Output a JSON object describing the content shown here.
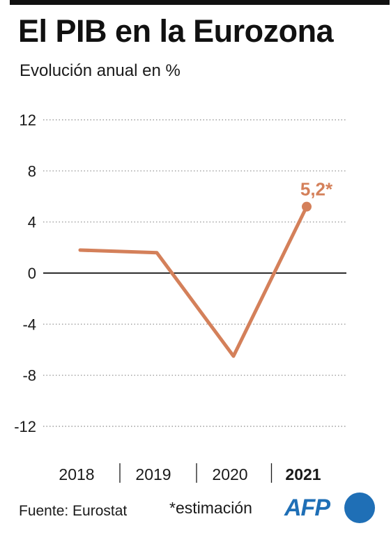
{
  "title": "El PIB en la Eurozona",
  "subtitle": "Evolución anual en %",
  "source": "Fuente: Eurostat",
  "note": "*estimación",
  "logo_text": "AFP",
  "colors": {
    "line": "#d4805a",
    "axis": "#111111",
    "grid": "#8a8a8a",
    "text": "#1a1a1a",
    "logo": "#1f6fb6"
  },
  "chart_data": {
    "type": "line",
    "x": [
      "2018",
      "2019",
      "2020",
      "2021"
    ],
    "series": [
      {
        "values": [
          1.8,
          1.6,
          -6.5,
          5.2
        ]
      }
    ],
    "ylim": [
      -12,
      12
    ],
    "yticks": [
      12,
      8,
      4,
      0,
      -4,
      -8,
      -12
    ],
    "ytick_labels": [
      "12",
      "8",
      "4",
      "0",
      "-4",
      "-8",
      "-12"
    ],
    "highlight": {
      "index": 3,
      "label": "5,2*"
    },
    "bold_category": "2021",
    "grid": true
  }
}
